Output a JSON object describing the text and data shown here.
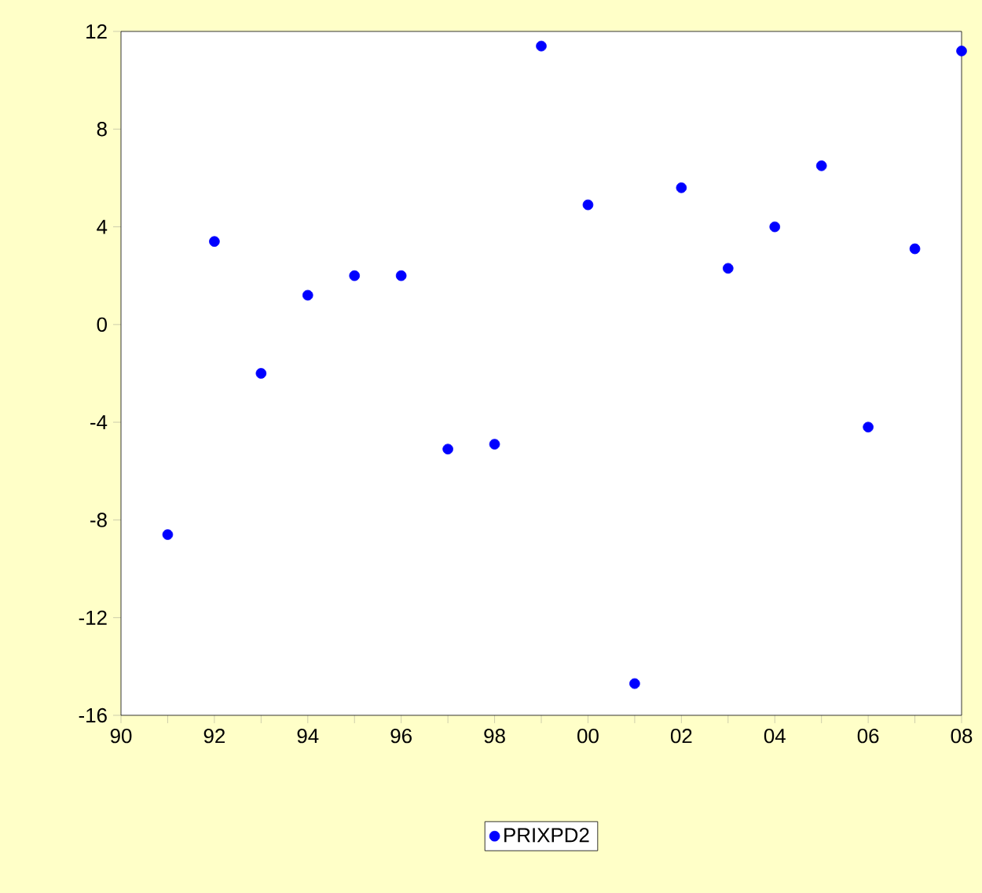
{
  "chart_data": {
    "type": "scatter",
    "grid": false,
    "legend": "bottom",
    "x": [
      1991,
      1992,
      1993,
      1994,
      1995,
      1996,
      1997,
      1998,
      1999,
      2000,
      2001,
      2002,
      2003,
      2004,
      2005,
      2006,
      2007,
      2008
    ],
    "series": [
      {
        "name": "PRIXPD2",
        "color": "#0000ff",
        "marker": "circle",
        "values": [
          -8.6,
          3.4,
          -2.0,
          1.2,
          2.0,
          2.0,
          -5.1,
          -4.9,
          11.4,
          4.9,
          -14.7,
          5.6,
          2.3,
          4.0,
          6.5,
          -4.2,
          3.1,
          11.2
        ]
      }
    ],
    "xlim": [
      1990,
      2008
    ],
    "xticks": [
      {
        "value": 1990,
        "label": "90"
      },
      {
        "value": 1991,
        "label": null
      },
      {
        "value": 1992,
        "label": "92"
      },
      {
        "value": 1993,
        "label": null
      },
      {
        "value": 1994,
        "label": "94"
      },
      {
        "value": 1995,
        "label": null
      },
      {
        "value": 1996,
        "label": "96"
      },
      {
        "value": 1997,
        "label": null
      },
      {
        "value": 1998,
        "label": "98"
      },
      {
        "value": 1999,
        "label": null
      },
      {
        "value": 2000,
        "label": "00"
      },
      {
        "value": 2001,
        "label": null
      },
      {
        "value": 2002,
        "label": "02"
      },
      {
        "value": 2003,
        "label": null
      },
      {
        "value": 2004,
        "label": "04"
      },
      {
        "value": 2005,
        "label": null
      },
      {
        "value": 2006,
        "label": "06"
      },
      {
        "value": 2007,
        "label": null
      },
      {
        "value": 2008,
        "label": "08"
      }
    ],
    "ylim": [
      -16,
      12
    ],
    "yticks": [
      -16,
      -12,
      -8,
      -4,
      0,
      4,
      8,
      12
    ]
  }
}
